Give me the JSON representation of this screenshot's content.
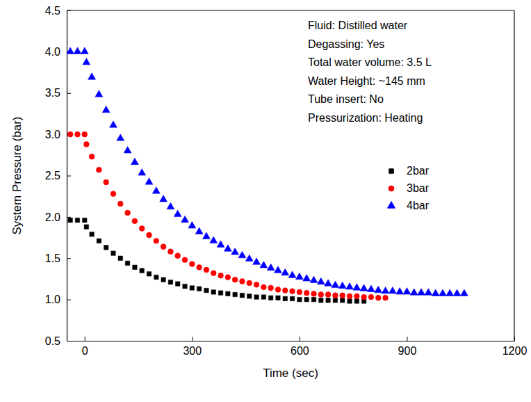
{
  "chart_data": {
    "type": "scatter",
    "x_label": "Time (sec)",
    "y_label": "System Pressure (bar)",
    "xlim": [
      -50,
      1200
    ],
    "xticks": [
      0,
      300,
      600,
      900,
      1200
    ],
    "ylim": [
      0.5,
      4.5
    ],
    "yticks": [
      0.5,
      {
        "value": 1,
        "label": "1.0"
      },
      1.5,
      {
        "value": 2,
        "label": "2.0"
      },
      2.5,
      {
        "value": 3,
        "label": "3.0"
      },
      3.5,
      {
        "value": 4,
        "label": "4.0"
      },
      4.5
    ],
    "grid": false,
    "legend": "upper right",
    "annotations": [
      "Fluid: Distilled water",
      "Degassing: Yes",
      "Total water volume: 3.5 L",
      "Water Height: ~145 mm",
      "Tube insert: No",
      "Pressurization: Heating"
    ],
    "series": [
      {
        "name": "2bar",
        "color": "#000000",
        "marker": "square",
        "x": [
          -40,
          -20,
          0,
          5,
          20,
          40,
          60,
          80,
          100,
          120,
          140,
          160,
          180,
          200,
          220,
          240,
          260,
          280,
          300,
          320,
          340,
          360,
          380,
          400,
          420,
          440,
          460,
          480,
          500,
          520,
          540,
          560,
          580,
          600,
          620,
          640,
          660,
          680,
          700,
          720,
          740,
          760,
          780
        ],
        "values": [
          1.96,
          1.96,
          1.96,
          1.88,
          1.79,
          1.71,
          1.63,
          1.56,
          1.5,
          1.44,
          1.39,
          1.35,
          1.31,
          1.27,
          1.24,
          1.21,
          1.19,
          1.16,
          1.14,
          1.13,
          1.11,
          1.09,
          1.08,
          1.07,
          1.06,
          1.05,
          1.04,
          1.03,
          1.03,
          1.02,
          1.02,
          1.01,
          1.01,
          1.0,
          1.0,
          1.0,
          0.99,
          0.99,
          0.99,
          0.99,
          0.98,
          0.98,
          0.98
        ]
      },
      {
        "name": "3bar",
        "color": "#ff0000",
        "marker": "circle",
        "x": [
          -40,
          -20,
          0,
          5,
          20,
          40,
          60,
          80,
          100,
          120,
          140,
          160,
          180,
          200,
          220,
          240,
          260,
          280,
          300,
          320,
          340,
          360,
          380,
          400,
          420,
          440,
          460,
          480,
          500,
          520,
          540,
          560,
          580,
          600,
          620,
          640,
          660,
          680,
          700,
          720,
          740,
          760,
          780,
          800,
          820,
          840
        ],
        "values": [
          3.0,
          3.0,
          3.0,
          2.88,
          2.73,
          2.57,
          2.42,
          2.28,
          2.16,
          2.05,
          1.95,
          1.86,
          1.78,
          1.71,
          1.64,
          1.58,
          1.53,
          1.48,
          1.43,
          1.39,
          1.36,
          1.32,
          1.29,
          1.27,
          1.24,
          1.22,
          1.2,
          1.18,
          1.15,
          1.14,
          1.12,
          1.11,
          1.1,
          1.09,
          1.08,
          1.07,
          1.06,
          1.06,
          1.05,
          1.05,
          1.04,
          1.04,
          1.03,
          1.03,
          1.02,
          1.02
        ]
      },
      {
        "name": "4bar",
        "color": "#0000ff",
        "marker": "triangle",
        "x": [
          -40,
          -20,
          0,
          5,
          20,
          40,
          60,
          80,
          100,
          120,
          140,
          160,
          180,
          200,
          220,
          240,
          260,
          280,
          300,
          320,
          340,
          360,
          380,
          400,
          420,
          440,
          460,
          480,
          500,
          520,
          540,
          560,
          580,
          600,
          620,
          640,
          660,
          680,
          700,
          720,
          740,
          760,
          780,
          800,
          820,
          840,
          860,
          880,
          900,
          920,
          940,
          960,
          980,
          1000,
          1020,
          1040,
          1060
        ],
        "values": [
          4.0,
          4.0,
          4.0,
          3.87,
          3.69,
          3.48,
          3.29,
          3.11,
          2.95,
          2.8,
          2.66,
          2.53,
          2.42,
          2.31,
          2.21,
          2.12,
          2.03,
          1.96,
          1.89,
          1.82,
          1.76,
          1.71,
          1.66,
          1.61,
          1.57,
          1.53,
          1.49,
          1.45,
          1.41,
          1.38,
          1.35,
          1.32,
          1.29,
          1.27,
          1.25,
          1.23,
          1.21,
          1.19,
          1.17,
          1.16,
          1.15,
          1.14,
          1.13,
          1.12,
          1.11,
          1.1,
          1.1,
          1.09,
          1.09,
          1.08,
          1.08,
          1.08,
          1.07,
          1.07,
          1.07,
          1.07,
          1.07
        ]
      }
    ]
  }
}
